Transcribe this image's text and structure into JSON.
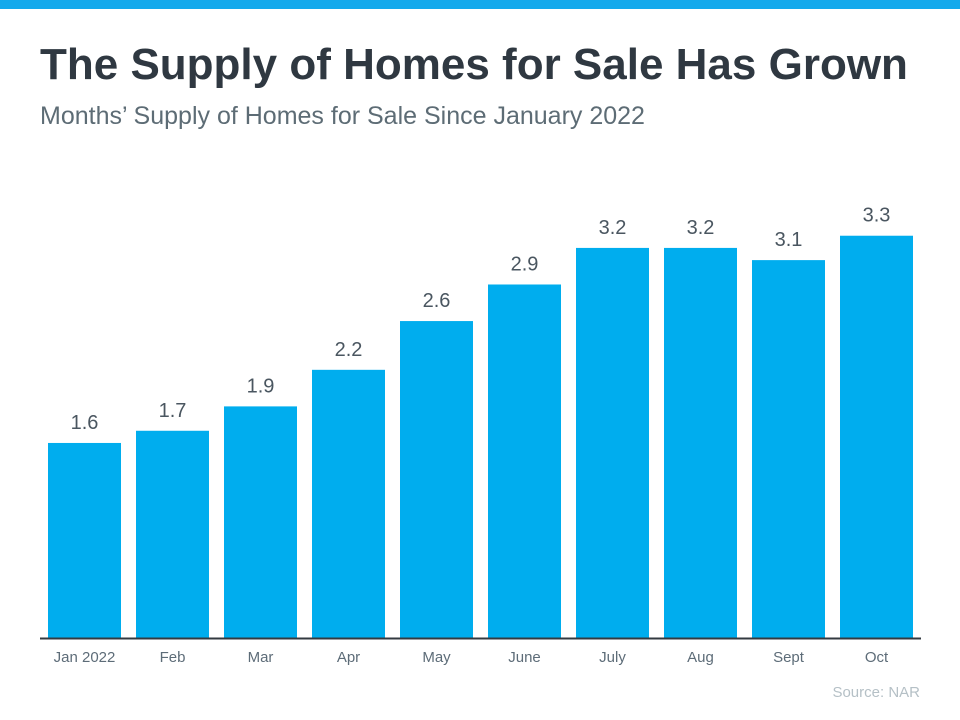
{
  "colors": {
    "accent": "#14a9ec",
    "bar": "#00adee",
    "title": "#2f3841",
    "axis": "#333a40"
  },
  "header": {
    "title": "The Supply of Homes for Sale Has Grown",
    "subtitle": "Months’ Supply of Homes for Sale Since January 2022"
  },
  "footer": {
    "source": "Source: NAR"
  },
  "chart_data": {
    "type": "bar",
    "title": "The Supply of Homes for Sale Has Grown",
    "subtitle": "Months’ Supply of Homes for Sale Since January 2022",
    "categories": [
      "Jan 2022",
      "Feb",
      "Mar",
      "Apr",
      "May",
      "June",
      "July",
      "Aug",
      "Sept",
      "Oct"
    ],
    "values": [
      1.6,
      1.7,
      1.9,
      2.2,
      2.6,
      2.9,
      3.2,
      3.2,
      3.1,
      3.3
    ],
    "data_labels": [
      "1.6",
      "1.7",
      "1.9",
      "2.2",
      "2.6",
      "2.9",
      "3.2",
      "3.2",
      "3.1",
      "3.3"
    ],
    "ylim": [
      0,
      3.6
    ],
    "grid": false,
    "legend": "none"
  }
}
